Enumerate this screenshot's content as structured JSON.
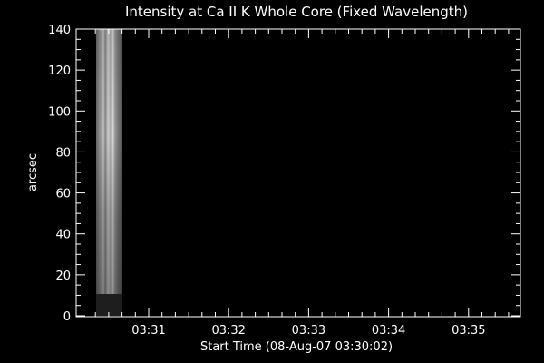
{
  "chart_data": {
    "type": "heatmap",
    "title": "Intensity at Ca II K Whole Core (Fixed Wavelength)",
    "xlabel": "Start Time (08-Aug-07 03:30:02)",
    "ylabel": "arcsec",
    "x_tick_labels": [
      "03:31",
      "03:32",
      "03:33",
      "03:34",
      "03:35"
    ],
    "y_tick_labels": [
      "0",
      "20",
      "40",
      "60",
      "80",
      "100",
      "120",
      "140"
    ],
    "y_range": [
      0,
      140
    ],
    "data_time_span": [
      "03:30:02",
      "03:30:38"
    ],
    "data_y_extent": [
      11,
      140
    ],
    "lower_strip_y_extent": [
      0,
      11
    ],
    "colors": {
      "background": "#000000",
      "axes": "#ffffff",
      "text": "#ffffff"
    }
  }
}
